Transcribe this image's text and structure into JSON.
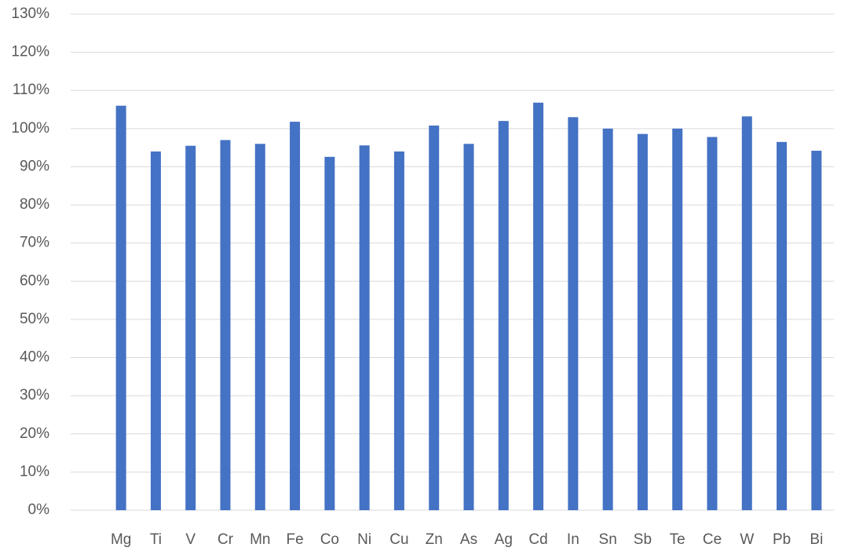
{
  "chart_data": {
    "type": "bar",
    "categories": [
      "Mg",
      "Ti",
      "V",
      "Cr",
      "Mn",
      "Fe",
      "Co",
      "Ni",
      "Cu",
      "Zn",
      "As",
      "Ag",
      "Cd",
      "In",
      "Sn",
      "Sb",
      "Te",
      "Ce",
      "W",
      "Pb",
      "Bi"
    ],
    "values": [
      106,
      94,
      95.5,
      97,
      96,
      101.8,
      92.6,
      95.6,
      94,
      100.8,
      96,
      102,
      106.8,
      103,
      100,
      98.6,
      100,
      97.8,
      103.2,
      96.5,
      94.2
    ],
    "color": "#4472c4",
    "ylim": [
      0,
      130
    ],
    "yticks": [
      {
        "value": 0,
        "label": "0%"
      },
      {
        "value": 10,
        "label": "10%"
      },
      {
        "value": 20,
        "label": "20%"
      },
      {
        "value": 30,
        "label": "30%"
      },
      {
        "value": 40,
        "label": "40%"
      },
      {
        "value": 50,
        "label": "50%"
      },
      {
        "value": 60,
        "label": "60%"
      },
      {
        "value": 70,
        "label": "70%"
      },
      {
        "value": 80,
        "label": "80%"
      },
      {
        "value": 90,
        "label": "90%"
      },
      {
        "value": 100,
        "label": "100%"
      },
      {
        "value": 110,
        "label": "110%"
      },
      {
        "value": 120,
        "label": "120%"
      },
      {
        "value": 130,
        "label": "130%"
      }
    ],
    "grid": true
  }
}
